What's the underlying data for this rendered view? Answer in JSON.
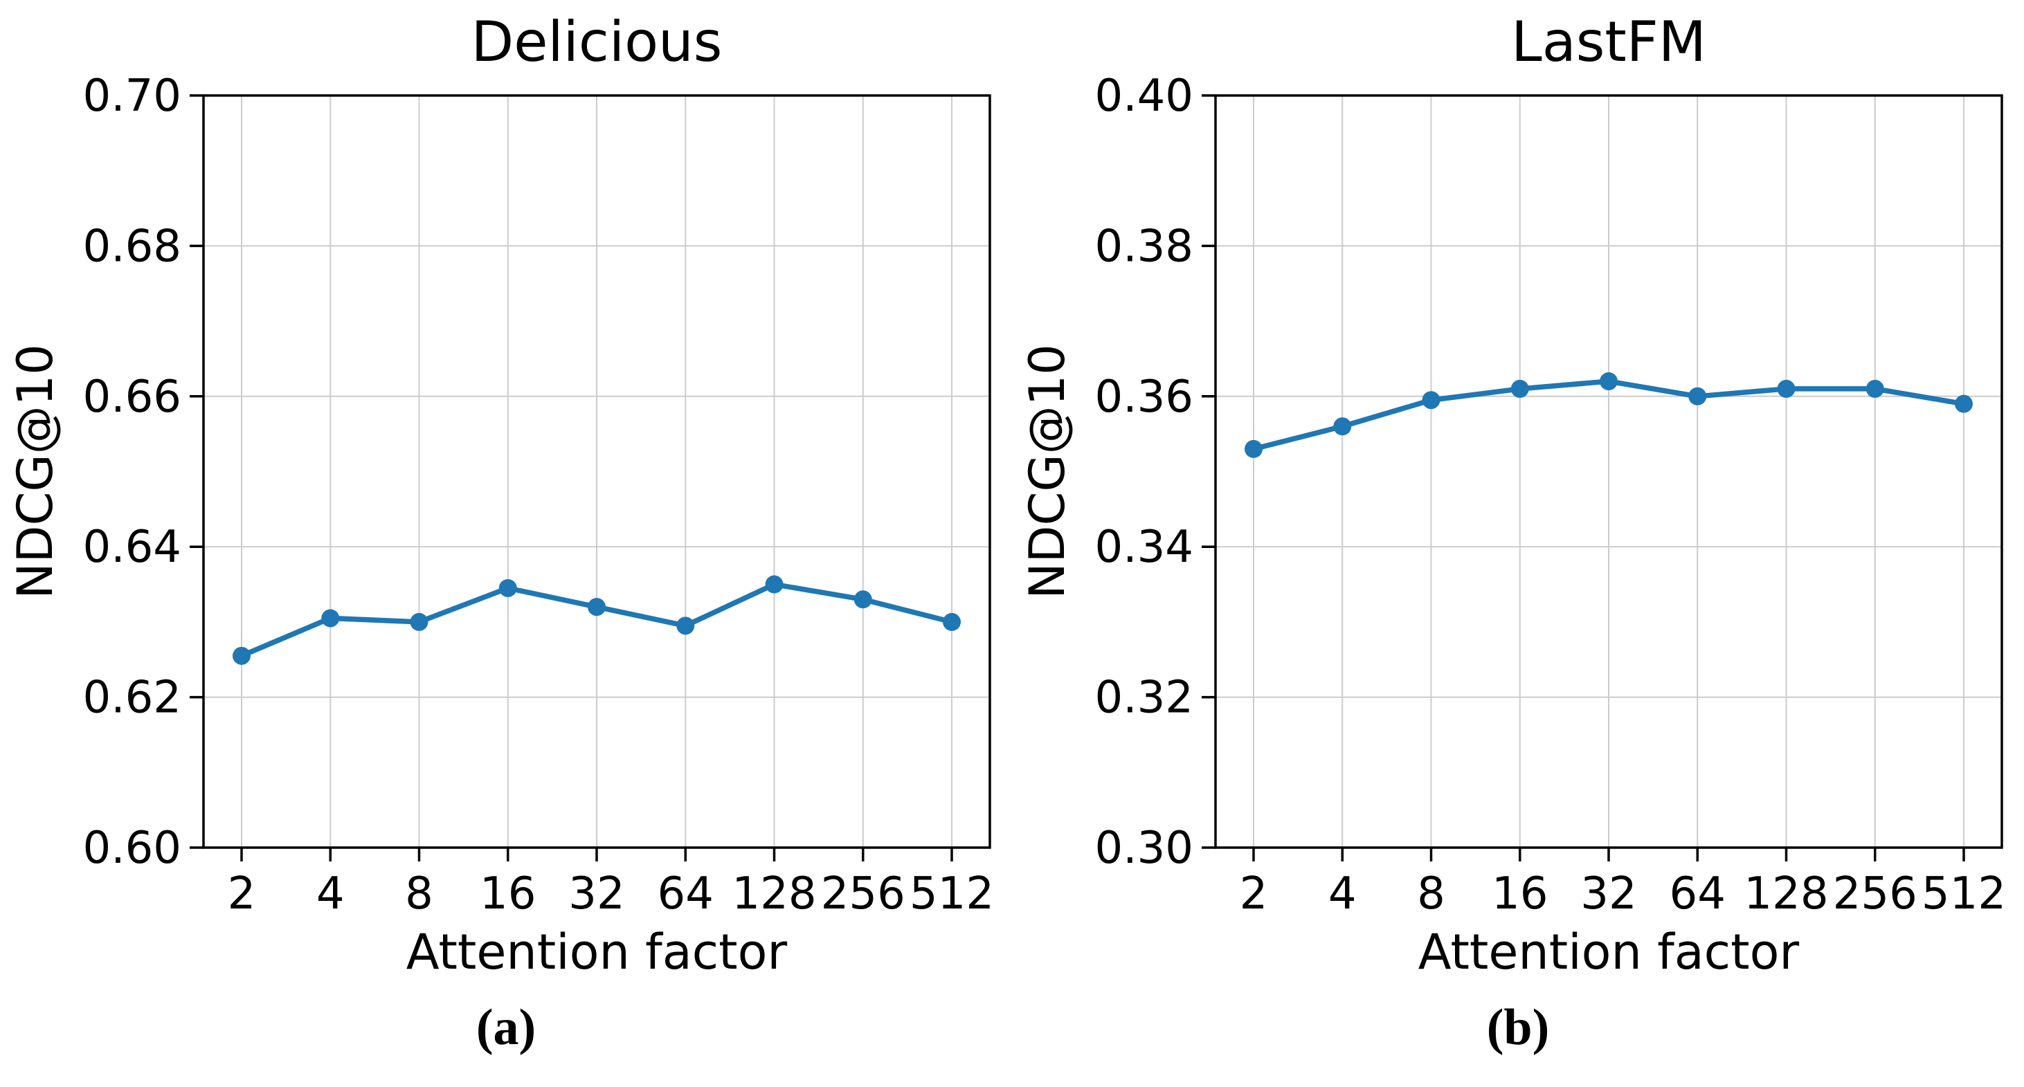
{
  "figure": {
    "background": "#ffffff",
    "accent_color": "#1f77b4",
    "grid_color": "#cccccc",
    "spine_color": "#000000",
    "caption_a": "(a)",
    "caption_b": "(b)"
  },
  "chart_data": [
    {
      "type": "line",
      "title": "Delicious",
      "xlabel": "Attention factor",
      "ylabel": "NDCG@10",
      "categories": [
        "2",
        "4",
        "8",
        "16",
        "32",
        "64",
        "128",
        "256",
        "512"
      ],
      "values": [
        0.6255,
        0.6305,
        0.63,
        0.6345,
        0.632,
        0.6295,
        0.635,
        0.633,
        0.63
      ],
      "ylim": [
        0.6,
        0.7
      ],
      "yticks": [
        0.6,
        0.62,
        0.64,
        0.66,
        0.68,
        0.7
      ],
      "grid": true,
      "legend": "none",
      "marker": "circle",
      "line_color": "#1f77b4",
      "caption": "(a)"
    },
    {
      "type": "line",
      "title": "LastFM",
      "xlabel": "Attention factor",
      "ylabel": "NDCG@10",
      "categories": [
        "2",
        "4",
        "8",
        "16",
        "32",
        "64",
        "128",
        "256",
        "512"
      ],
      "values": [
        0.353,
        0.356,
        0.3595,
        0.361,
        0.362,
        0.36,
        0.361,
        0.361,
        0.359
      ],
      "ylim": [
        0.3,
        0.4
      ],
      "yticks": [
        0.3,
        0.32,
        0.34,
        0.36,
        0.38,
        0.4
      ],
      "grid": true,
      "legend": "none",
      "marker": "circle",
      "line_color": "#1f77b4",
      "caption": "(b)"
    }
  ]
}
